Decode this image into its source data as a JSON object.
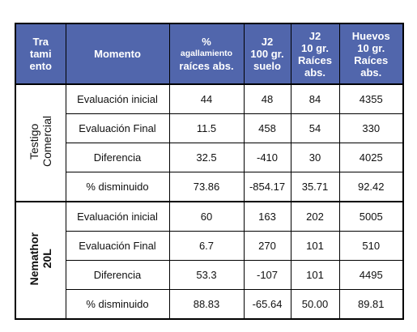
{
  "table": {
    "header": [
      [
        "Tra",
        "tami",
        "ento"
      ],
      [
        "Momento"
      ],
      [
        "%",
        "agallamiento",
        "raíces abs."
      ],
      [
        "J2",
        "100 gr.",
        "suelo"
      ],
      [
        "J2",
        "10 gr.",
        "Raíces",
        "abs."
      ],
      [
        "Huevos",
        "10 gr.",
        "Raíces",
        "abs."
      ]
    ],
    "groups": [
      {
        "label": [
          "Testigo",
          "Comercial"
        ],
        "rows": [
          [
            "Evaluación inicial",
            "44",
            "48",
            "84",
            "4355"
          ],
          [
            "Evaluación Final",
            "11.5",
            "458",
            "54",
            "330"
          ],
          [
            "Diferencia",
            "32.5",
            "-410",
            "30",
            "4025"
          ],
          [
            "% disminuido",
            "73.86",
            "-854.17",
            "35.71",
            "92.42"
          ]
        ]
      },
      {
        "label": [
          "Nemathor",
          "20L"
        ],
        "rows": [
          [
            "Evaluación inicial",
            "60",
            "163",
            "202",
            "5005"
          ],
          [
            "Evaluación Final",
            "6.7",
            "270",
            "101",
            "510"
          ],
          [
            "Diferencia",
            "53.3",
            "-107",
            "101",
            "4495"
          ],
          [
            "% disminuido",
            "88.83",
            "-65.64",
            "50.00",
            "89.81"
          ]
        ]
      }
    ]
  }
}
